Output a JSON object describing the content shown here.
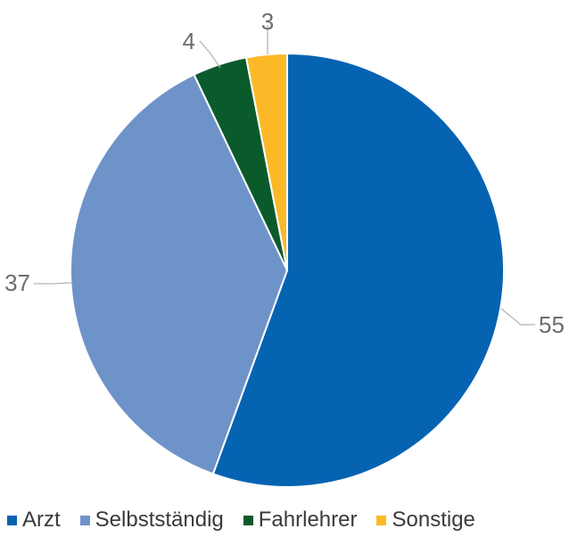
{
  "chart_data": {
    "type": "pie",
    "categories": [
      "Arzt",
      "Selbstständig",
      "Fahrlehrer",
      "Sonstige"
    ],
    "values": [
      55,
      37,
      4,
      3
    ],
    "colors": [
      "#0563b2",
      "#6e93c9",
      "#0b5a2c",
      "#fbb928"
    ],
    "data_labels": [
      "55",
      "37",
      "4",
      "3"
    ],
    "legend_position": "bottom",
    "title": ""
  }
}
